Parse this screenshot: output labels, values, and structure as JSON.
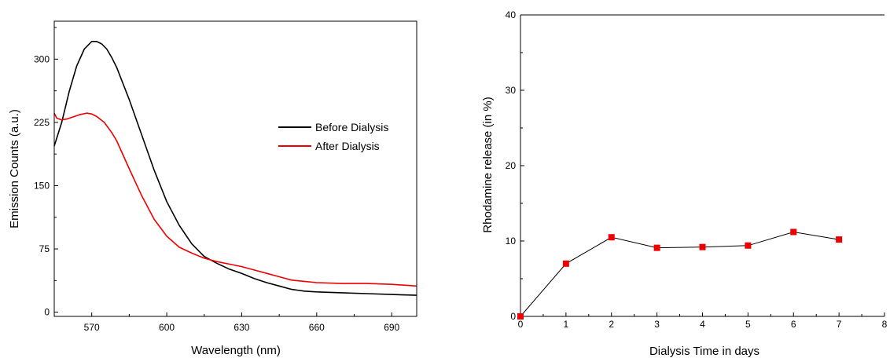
{
  "chart_data": [
    {
      "type": "line",
      "xlabel": "Wavelength (nm)",
      "ylabel": "Emission Counts (a.u.)",
      "xlim": [
        555,
        700
      ],
      "ylim": [
        -5,
        345
      ],
      "xticks": [
        570,
        600,
        630,
        660,
        690
      ],
      "xtick_labels": [
        "570",
        "600",
        "630",
        "660",
        "690"
      ],
      "yticks": [
        0,
        75,
        150,
        225,
        300
      ],
      "ytick_labels": [
        "0",
        "75",
        "150",
        "225",
        "300"
      ],
      "grid": false,
      "legend_position": "right",
      "series": [
        {
          "name": "Before Dialysis",
          "color": "#000000",
          "x": [
            555,
            558,
            561,
            564,
            567,
            570,
            572,
            574,
            576,
            578,
            580,
            585,
            590,
            595,
            600,
            605,
            610,
            615,
            620,
            625,
            630,
            635,
            640,
            645,
            650,
            655,
            660,
            670,
            680,
            690,
            700
          ],
          "y": [
            197,
            225,
            262,
            292,
            312,
            321,
            321,
            318,
            312,
            302,
            290,
            252,
            210,
            168,
            131,
            103,
            81,
            66,
            58,
            51,
            46,
            40,
            35,
            31,
            27,
            25,
            24,
            23,
            22,
            21,
            20
          ]
        },
        {
          "name": "After Dialysis",
          "color": "#ee0000",
          "x": [
            555,
            556,
            558,
            560,
            562,
            565,
            568,
            570,
            572,
            575,
            578,
            580,
            585,
            590,
            595,
            600,
            605,
            610,
            615,
            620,
            625,
            630,
            635,
            640,
            645,
            650,
            660,
            670,
            680,
            690,
            700
          ],
          "y": [
            236,
            230,
            228,
            229,
            231,
            234,
            236,
            235,
            232,
            225,
            213,
            203,
            170,
            138,
            110,
            90,
            77,
            70,
            64,
            60,
            57,
            54,
            50,
            46,
            42,
            38,
            35,
            34,
            34,
            33,
            31
          ]
        }
      ]
    },
    {
      "type": "line",
      "xlabel": "Dialysis Time in days",
      "ylabel": "Rhodamine release (in %)",
      "xlim": [
        0,
        8
      ],
      "ylim": [
        0,
        40
      ],
      "xticks": [
        0,
        1,
        2,
        3,
        4,
        5,
        6,
        7,
        8
      ],
      "xtick_labels": [
        "0",
        "1",
        "2",
        "3",
        "4",
        "5",
        "6",
        "7",
        "8"
      ],
      "yticks": [
        0,
        10,
        20,
        30,
        40
      ],
      "ytick_labels": [
        "0",
        "10",
        "20",
        "30",
        "40"
      ],
      "grid": false,
      "marker": "square",
      "line_color": "#000000",
      "marker_color": "#ee0000",
      "series": [
        {
          "x": [
            0,
            1,
            2,
            3,
            4,
            5,
            6,
            7
          ],
          "y": [
            0,
            7.0,
            10.5,
            9.1,
            9.2,
            9.4,
            11.2,
            10.2
          ]
        }
      ]
    }
  ]
}
